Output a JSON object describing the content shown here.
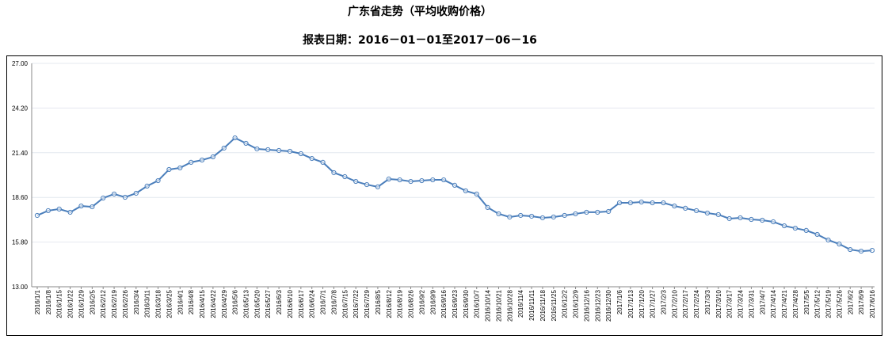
{
  "chart_data": {
    "type": "line",
    "title": "广东省走势（平均收购价格）",
    "subtitle": "报表日期：2016－01－01至2017－06－16",
    "xlabel": "",
    "ylabel": "",
    "ylim": [
      13.0,
      27.0
    ],
    "yticks": [
      "13.00",
      "15.80",
      "18.60",
      "21.40",
      "24.20",
      "27.00"
    ],
    "grid": true,
    "legend": "none",
    "line_color": "#4a7ebb",
    "x": [
      "2016/1/1",
      "2016/1/8",
      "2016/1/15",
      "2016/1/22",
      "2016/1/29",
      "2016/2/5",
      "2016/2/12",
      "2016/2/19",
      "2016/2/26",
      "2016/3/4",
      "2016/3/11",
      "2016/3/18",
      "2016/3/25",
      "2016/4/1",
      "2016/4/8",
      "2016/4/15",
      "2016/4/22",
      "2016/4/29",
      "2016/5/6",
      "2016/5/13",
      "2016/5/20",
      "2016/5/27",
      "2016/6/3",
      "2016/6/10",
      "2016/6/17",
      "2016/6/24",
      "2016/7/1",
      "2016/7/8",
      "2016/7/15",
      "2016/7/22",
      "2016/7/29",
      "2016/8/5",
      "2016/8/12",
      "2016/8/19",
      "2016/8/26",
      "2016/9/2",
      "2016/9/9",
      "2016/9/16",
      "2016/9/23",
      "2016/9/30",
      "2016/10/7",
      "2016/10/14",
      "2016/10/21",
      "2016/10/28",
      "2016/11/4",
      "2016/11/11",
      "2016/11/18",
      "2016/11/25",
      "2016/12/2",
      "2016/12/9",
      "2016/12/16",
      "2016/12/23",
      "2016/12/30",
      "2017/1/6",
      "2017/1/13",
      "2017/1/20",
      "2017/1/27",
      "2017/2/3",
      "2017/2/10",
      "2017/2/17",
      "2017/2/24",
      "2017/3/3",
      "2017/3/10",
      "2017/3/17",
      "2017/3/24",
      "2017/3/31",
      "2017/4/7",
      "2017/4/14",
      "2017/4/21",
      "2017/4/28",
      "2017/5/5",
      "2017/5/12",
      "2017/5/19",
      "2017/5/26",
      "2017/6/2",
      "2017/6/9",
      "2017/6/16"
    ],
    "values": [
      17.47,
      17.77,
      17.87,
      17.67,
      18.06,
      18.01,
      18.56,
      18.81,
      18.61,
      18.86,
      19.31,
      19.65,
      20.35,
      20.45,
      20.8,
      20.94,
      21.14,
      21.69,
      22.33,
      21.99,
      21.64,
      21.59,
      21.54,
      21.49,
      21.34,
      21.04,
      20.8,
      20.15,
      19.9,
      19.6,
      19.4,
      19.26,
      19.75,
      19.7,
      19.6,
      19.65,
      19.7,
      19.7,
      19.36,
      19.01,
      18.81,
      17.97,
      17.57,
      17.37,
      17.47,
      17.42,
      17.32,
      17.37,
      17.47,
      17.57,
      17.67,
      17.67,
      17.72,
      18.26,
      18.26,
      18.31,
      18.26,
      18.26,
      18.06,
      17.92,
      17.77,
      17.62,
      17.52,
      17.27,
      17.32,
      17.22,
      17.17,
      17.07,
      16.82,
      16.67,
      16.53,
      16.28,
      15.93,
      15.68,
      15.33,
      15.23,
      15.28
    ]
  }
}
